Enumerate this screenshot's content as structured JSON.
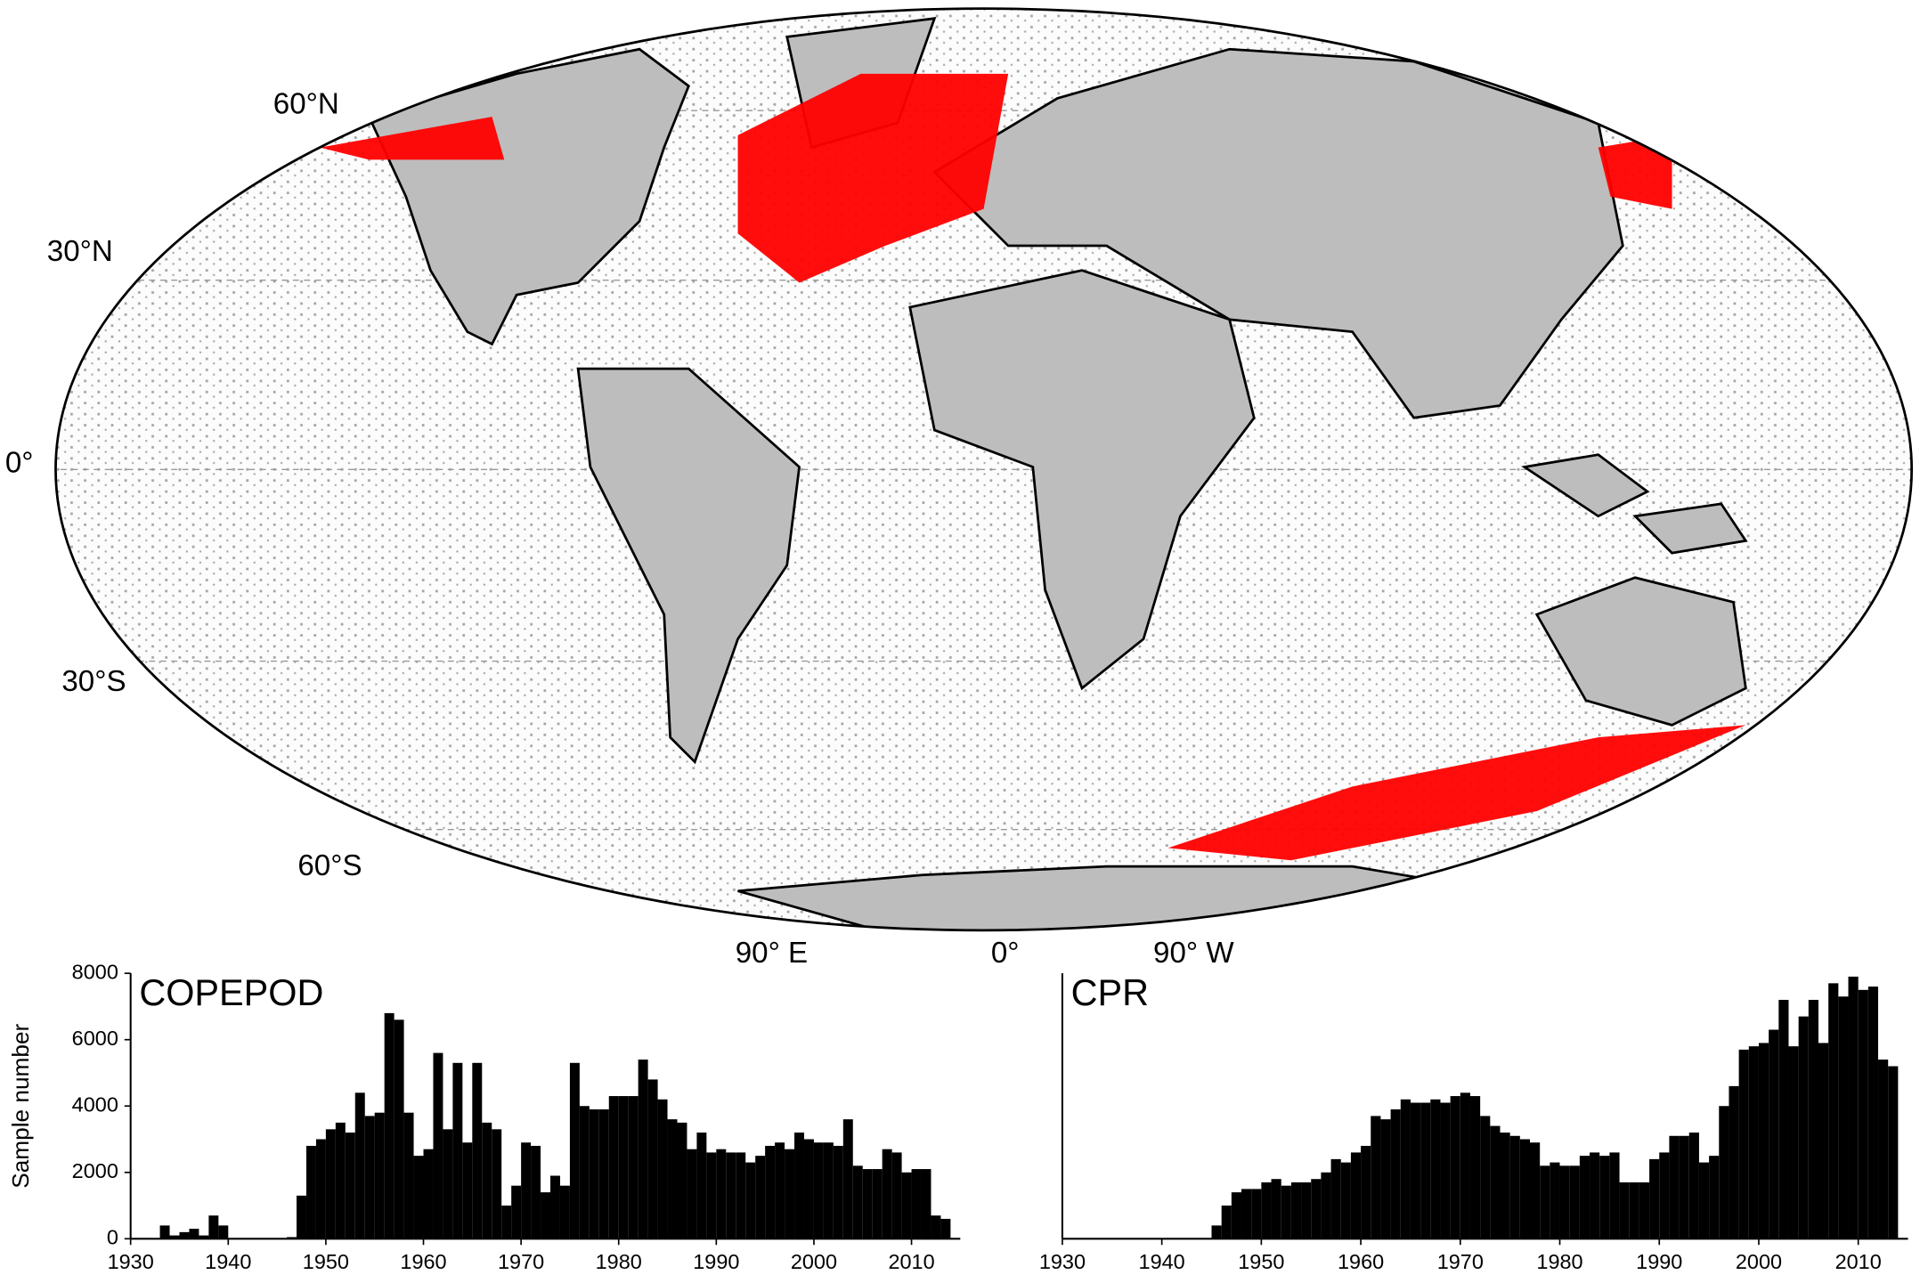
{
  "map": {
    "lat_labels": [
      "60°N",
      "30°N",
      "0°",
      "30°S",
      "60°S"
    ],
    "lon_labels": [
      "90° E",
      "0°",
      "90° W"
    ]
  },
  "chart_data": [
    {
      "type": "bar",
      "title": "COPEPOD",
      "y_label": "Sample number",
      "color": "#000000",
      "x": [
        1930,
        1931,
        1932,
        1933,
        1934,
        1935,
        1936,
        1937,
        1938,
        1939,
        1940,
        1941,
        1942,
        1943,
        1944,
        1945,
        1946,
        1947,
        1948,
        1949,
        1950,
        1951,
        1952,
        1953,
        1954,
        1955,
        1956,
        1957,
        1958,
        1959,
        1960,
        1961,
        1962,
        1963,
        1964,
        1965,
        1966,
        1967,
        1968,
        1969,
        1970,
        1971,
        1972,
        1973,
        1974,
        1975,
        1976,
        1977,
        1978,
        1979,
        1980,
        1981,
        1982,
        1983,
        1984,
        1985,
        1986,
        1987,
        1988,
        1989,
        1990,
        1991,
        1992,
        1993,
        1994,
        1995,
        1996,
        1997,
        1998,
        1999,
        2000,
        2001,
        2002,
        2003,
        2004,
        2005,
        2006,
        2007,
        2008,
        2009,
        2010,
        2011,
        2012,
        2013
      ],
      "values": [
        0,
        0,
        0,
        400,
        100,
        200,
        300,
        100,
        700,
        400,
        0,
        0,
        0,
        0,
        0,
        0,
        50,
        1300,
        2800,
        3000,
        3300,
        3500,
        3200,
        4400,
        3700,
        3800,
        6800,
        6600,
        3800,
        2500,
        2700,
        5600,
        3300,
        5300,
        2900,
        5300,
        3500,
        3300,
        1000,
        1600,
        2900,
        2800,
        1400,
        1900,
        1600,
        5300,
        4000,
        3900,
        3900,
        4300,
        4300,
        4300,
        5400,
        4800,
        4200,
        3600,
        3500,
        2700,
        3200,
        2600,
        2700,
        2600,
        2600,
        2300,
        2500,
        2800,
        2900,
        2700,
        3200,
        3000,
        2900,
        2900,
        2800,
        3600,
        2200,
        2100,
        2100,
        2700,
        2600,
        2000,
        2100,
        2100,
        700,
        600
      ],
      "xlim": [
        1930,
        2015
      ],
      "xticks": [
        1930,
        1940,
        1950,
        1960,
        1970,
        1980,
        1990,
        2000,
        2010
      ],
      "ylim": [
        0,
        8000
      ],
      "yticks": [
        0,
        2000,
        4000,
        6000,
        8000
      ]
    },
    {
      "type": "bar",
      "title": "CPR",
      "color": "#000000",
      "x": [
        1930,
        1931,
        1932,
        1933,
        1934,
        1935,
        1936,
        1937,
        1938,
        1939,
        1940,
        1941,
        1942,
        1943,
        1944,
        1945,
        1946,
        1947,
        1948,
        1949,
        1950,
        1951,
        1952,
        1953,
        1954,
        1955,
        1956,
        1957,
        1958,
        1959,
        1960,
        1961,
        1962,
        1963,
        1964,
        1965,
        1966,
        1967,
        1968,
        1969,
        1970,
        1971,
        1972,
        1973,
        1974,
        1975,
        1976,
        1977,
        1978,
        1979,
        1980,
        1981,
        1982,
        1983,
        1984,
        1985,
        1986,
        1987,
        1988,
        1989,
        1990,
        1991,
        1992,
        1993,
        1994,
        1995,
        1996,
        1997,
        1998,
        1999,
        2000,
        2001,
        2002,
        2003,
        2004,
        2005,
        2006,
        2007,
        2008,
        2009,
        2010,
        2011,
        2012,
        2013
      ],
      "values": [
        0,
        0,
        0,
        0,
        0,
        0,
        0,
        0,
        0,
        0,
        0,
        0,
        0,
        0,
        0,
        400,
        1000,
        1400,
        1500,
        1500,
        1700,
        1800,
        1600,
        1700,
        1700,
        1800,
        2000,
        2400,
        2300,
        2600,
        2800,
        3700,
        3600,
        3900,
        4200,
        4100,
        4100,
        4200,
        4100,
        4300,
        4400,
        4300,
        3700,
        3400,
        3200,
        3100,
        3000,
        2900,
        2200,
        2300,
        2200,
        2200,
        2500,
        2600,
        2500,
        2600,
        1700,
        1700,
        1700,
        2400,
        2600,
        3100,
        3100,
        3200,
        2300,
        2500,
        4000,
        4600,
        5700,
        5800,
        5900,
        6300,
        7200,
        5800,
        6700,
        7200,
        5900,
        7700,
        7300,
        7900,
        7500,
        7600,
        5400,
        5200
      ],
      "xlim": [
        1930,
        2015
      ],
      "xticks": [
        1930,
        1940,
        1950,
        1960,
        1970,
        1980,
        1990,
        2000,
        2010
      ],
      "ylim": [
        0,
        8000
      ]
    }
  ]
}
